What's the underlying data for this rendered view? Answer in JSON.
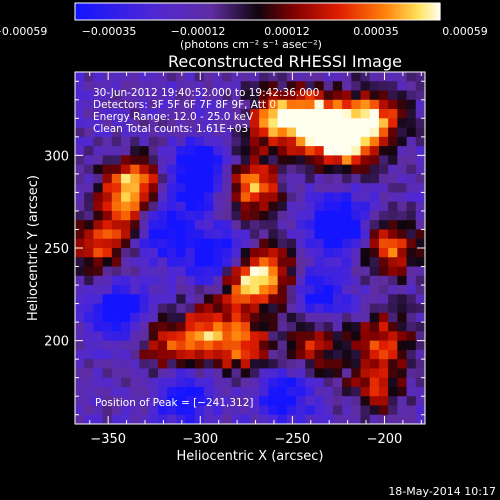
{
  "colorbar": {
    "tick_labels": [
      "−0.00059",
      "−0.00035",
      "−0.00012",
      "0.00012",
      "0.00035",
      "0.00059"
    ],
    "units": "(photons cm⁻² s⁻¹ asec⁻²)"
  },
  "title": "Reconstructed RHESSI Image",
  "info_lines": [
    "30-Jun-2012 19:40:52.000 to 19:42:36.000",
    "Detectors: 3F 5F 6F 7F 8F 9F, Att 0",
    "Energy Range: 12.0 - 25.0 keV",
    "Clean     Total counts: 1.61E+03"
  ],
  "peak_label": "Position of Peak = [−241,312]",
  "footer_date": "18-May-2014 10:17",
  "colors": {
    "background": "#000000",
    "text": "#ffffff"
  },
  "chart_data": {
    "type": "heatmap",
    "title": "Reconstructed RHESSI Image",
    "xlabel": "Heliocentric X (arcsec)",
    "ylabel": "Heliocentric Y (arcsec)",
    "xlim": [
      -368,
      -178
    ],
    "ylim": [
      155,
      345
    ],
    "xticks": [
      -350,
      -300,
      -250,
      -200
    ],
    "xtick_labels": [
      "−350",
      "−300",
      "−250",
      "−200"
    ],
    "yticks": [
      200,
      250,
      300
    ],
    "ytick_labels": [
      "200",
      "250",
      "300"
    ],
    "colorbar_range": [
      -0.00059,
      0.00059
    ],
    "colormap": "blue-purple-black-red-yellow-white",
    "peak_position": [
      -241,
      312
    ],
    "emission_sources": [
      {
        "x": -237,
        "y": 318,
        "intensity": 1.0
      },
      {
        "x": -221,
        "y": 308,
        "intensity": 0.95
      },
      {
        "x": -258,
        "y": 320,
        "intensity": 0.85
      },
      {
        "x": -205,
        "y": 320,
        "intensity": 0.8
      },
      {
        "x": -272,
        "y": 283,
        "intensity": 0.85
      },
      {
        "x": -277,
        "y": 233,
        "intensity": 0.75
      },
      {
        "x": -262,
        "y": 235,
        "intensity": 0.65
      },
      {
        "x": -196,
        "y": 250,
        "intensity": 0.7
      },
      {
        "x": -336,
        "y": 285,
        "intensity": 0.75
      },
      {
        "x": -355,
        "y": 250,
        "intensity": 0.6
      },
      {
        "x": -296,
        "y": 203,
        "intensity": 0.72
      },
      {
        "x": -275,
        "y": 197,
        "intensity": 0.6
      },
      {
        "x": -238,
        "y": 198,
        "intensity": 0.55
      },
      {
        "x": -200,
        "y": 200,
        "intensity": 0.6
      },
      {
        "x": -320,
        "y": 198,
        "intensity": 0.55
      },
      {
        "x": -205,
        "y": 175,
        "intensity": 0.5
      },
      {
        "x": -340,
        "y": 270,
        "intensity": 0.5
      }
    ],
    "absorption_regions": [
      {
        "x": -300,
        "y": 290,
        "intensity": -0.85
      },
      {
        "x": -320,
        "y": 260,
        "intensity": -0.6
      },
      {
        "x": -290,
        "y": 245,
        "intensity": -0.7
      },
      {
        "x": -225,
        "y": 262,
        "intensity": -0.75
      },
      {
        "x": -345,
        "y": 215,
        "intensity": -0.6
      },
      {
        "x": -255,
        "y": 170,
        "intensity": -0.55
      },
      {
        "x": -310,
        "y": 170,
        "intensity": -0.5
      },
      {
        "x": -235,
        "y": 225,
        "intensity": -0.5
      }
    ]
  }
}
